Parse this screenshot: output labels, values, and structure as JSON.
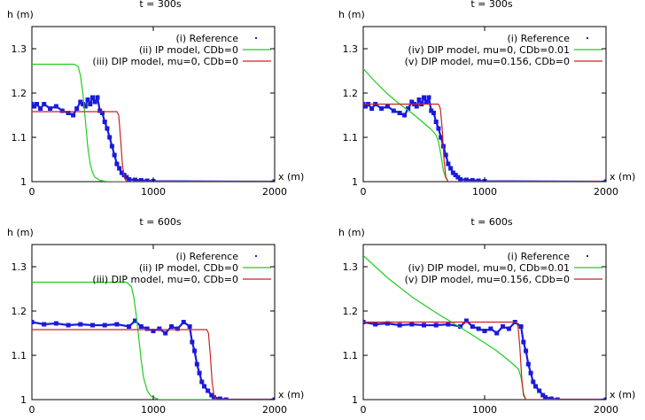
{
  "chart_data": [
    {
      "type": "line",
      "title": "t = 300s",
      "xlabel": "x (m)",
      "ylabel": "h (m)",
      "xlim": [
        0,
        2000
      ],
      "ylim": [
        1.0,
        1.35
      ],
      "xticks": [
        "0",
        "1000",
        "2000"
      ],
      "yticks": [
        "1",
        "1.1",
        "1.2",
        "1.3"
      ],
      "legend_position": "top-right",
      "colors": {
        "reference": "#1a1adc",
        "green": "#22cc22",
        "red": "#cc2222"
      },
      "series": [
        {
          "name": "(i) Reference",
          "style": "points",
          "x": [
            0,
            20,
            40,
            70,
            100,
            150,
            200,
            250,
            300,
            340,
            370,
            400,
            420,
            440,
            460,
            480,
            500,
            520,
            540,
            560,
            580,
            600,
            620,
            640,
            660,
            680,
            700,
            720,
            740,
            760,
            780,
            800,
            850,
            900,
            950,
            1000,
            2000
          ],
          "y": [
            1.175,
            1.17,
            1.175,
            1.165,
            1.175,
            1.165,
            1.17,
            1.16,
            1.155,
            1.15,
            1.165,
            1.18,
            1.175,
            1.17,
            1.185,
            1.175,
            1.19,
            1.18,
            1.19,
            1.16,
            1.155,
            1.135,
            1.12,
            1.1,
            1.08,
            1.06,
            1.04,
            1.03,
            1.02,
            1.015,
            1.01,
            1.005,
            1.004,
            1.003,
            1.002,
            1.001,
            1.0
          ]
        },
        {
          "name": "(ii) IP model, CDb=0",
          "x": [
            0,
            350,
            380,
            400,
            420,
            440,
            460,
            480,
            500,
            520,
            560,
            620,
            2000
          ],
          "y": [
            1.265,
            1.265,
            1.26,
            1.24,
            1.2,
            1.14,
            1.08,
            1.04,
            1.02,
            1.01,
            1.003,
            1.0,
            1.0
          ]
        },
        {
          "name": "(iii) DIP model, mu=0, CDb=0",
          "x": [
            0,
            700,
            715,
            730,
            745,
            760,
            780,
            2000
          ],
          "y": [
            1.158,
            1.158,
            1.15,
            1.1,
            1.04,
            1.01,
            1.0,
            1.0
          ]
        }
      ]
    },
    {
      "type": "line",
      "title": "t = 300s",
      "xlabel": "x (m)",
      "ylabel": "h (m)",
      "xlim": [
        0,
        2000
      ],
      "ylim": [
        1.0,
        1.35
      ],
      "xticks": [
        "0",
        "1000",
        "2000"
      ],
      "yticks": [
        "1",
        "1.1",
        "1.2",
        "1.3"
      ],
      "legend_position": "top-right",
      "colors": {
        "reference": "#1a1adc",
        "green": "#22cc22",
        "red": "#cc2222"
      },
      "series": [
        {
          "name": "(i) Reference",
          "style": "points",
          "x": [
            0,
            20,
            40,
            70,
            100,
            150,
            200,
            250,
            300,
            340,
            370,
            400,
            420,
            440,
            460,
            480,
            500,
            520,
            540,
            560,
            580,
            600,
            620,
            640,
            660,
            680,
            700,
            720,
            740,
            760,
            780,
            800,
            850,
            900,
            950,
            1000,
            2000
          ],
          "y": [
            1.175,
            1.17,
            1.175,
            1.165,
            1.175,
            1.165,
            1.17,
            1.16,
            1.155,
            1.15,
            1.165,
            1.18,
            1.175,
            1.17,
            1.185,
            1.175,
            1.19,
            1.18,
            1.19,
            1.16,
            1.155,
            1.135,
            1.12,
            1.1,
            1.08,
            1.06,
            1.04,
            1.03,
            1.02,
            1.015,
            1.01,
            1.005,
            1.004,
            1.003,
            1.002,
            1.001,
            1.0
          ]
        },
        {
          "name": "(iv) DIP model, mu=0, CDb=0.01",
          "x": [
            0,
            100,
            200,
            300,
            400,
            500,
            560,
            600,
            620,
            640,
            660,
            680,
            700,
            2000
          ],
          "y": [
            1.255,
            1.225,
            1.198,
            1.175,
            1.155,
            1.132,
            1.118,
            1.105,
            1.09,
            1.06,
            1.025,
            1.008,
            1.0,
            1.0
          ]
        },
        {
          "name": "(v) DIP model, mu=0.156, CDb=0",
          "x": [
            0,
            620,
            635,
            650,
            665,
            680,
            700,
            2000
          ],
          "y": [
            1.175,
            1.175,
            1.165,
            1.12,
            1.05,
            1.01,
            1.0,
            1.0
          ]
        }
      ]
    },
    {
      "type": "line",
      "title": "t = 600s",
      "xlabel": "x (m)",
      "ylabel": "h (m)",
      "xlim": [
        0,
        2000
      ],
      "ylim": [
        1.0,
        1.35
      ],
      "xticks": [
        "0",
        "1000",
        "2000"
      ],
      "yticks": [
        "1",
        "1.1",
        "1.2",
        "1.3"
      ],
      "legend_position": "top-right",
      "colors": {
        "reference": "#1a1adc",
        "green": "#22cc22",
        "red": "#cc2222"
      },
      "series": [
        {
          "name": "(i) Reference",
          "style": "points",
          "x": [
            0,
            100,
            200,
            300,
            400,
            500,
            600,
            700,
            800,
            850,
            900,
            950,
            1000,
            1050,
            1100,
            1150,
            1200,
            1250,
            1300,
            1320,
            1340,
            1360,
            1380,
            1400,
            1420,
            1450,
            1480,
            1500,
            1550,
            1600,
            2000
          ],
          "y": [
            1.175,
            1.17,
            1.172,
            1.168,
            1.17,
            1.168,
            1.168,
            1.17,
            1.165,
            1.178,
            1.165,
            1.16,
            1.155,
            1.16,
            1.15,
            1.165,
            1.16,
            1.175,
            1.165,
            1.13,
            1.11,
            1.08,
            1.06,
            1.04,
            1.03,
            1.02,
            1.01,
            1.005,
            1.002,
            1.0,
            1.0
          ]
        },
        {
          "name": "(ii) IP model, CDb=0",
          "x": [
            0,
            780,
            820,
            840,
            860,
            880,
            900,
            920,
            950,
            980,
            1050,
            2000
          ],
          "y": [
            1.265,
            1.265,
            1.255,
            1.23,
            1.19,
            1.14,
            1.09,
            1.05,
            1.02,
            1.008,
            1.0,
            1.0
          ]
        },
        {
          "name": "(iii) DIP model, mu=0, CDb=0",
          "x": [
            0,
            1440,
            1455,
            1470,
            1485,
            1500,
            1520,
            2000
          ],
          "y": [
            1.158,
            1.158,
            1.15,
            1.1,
            1.04,
            1.01,
            1.0,
            1.0
          ]
        }
      ]
    },
    {
      "type": "line",
      "title": "t = 600s",
      "xlabel": "x (m)",
      "ylabel": "h (m)",
      "xlim": [
        0,
        2000
      ],
      "ylim": [
        1.0,
        1.35
      ],
      "xticks": [
        "0",
        "1000",
        "2000"
      ],
      "yticks": [
        "1",
        "1.1",
        "1.2",
        "1.3"
      ],
      "legend_position": "top-right",
      "colors": {
        "reference": "#1a1adc",
        "green": "#22cc22",
        "red": "#cc2222"
      },
      "series": [
        {
          "name": "(i) Reference",
          "style": "points",
          "x": [
            0,
            100,
            200,
            300,
            400,
            500,
            600,
            700,
            800,
            850,
            900,
            950,
            1000,
            1050,
            1100,
            1150,
            1200,
            1250,
            1300,
            1320,
            1340,
            1360,
            1380,
            1400,
            1420,
            1450,
            1480,
            1500,
            1550,
            1600,
            2000
          ],
          "y": [
            1.175,
            1.17,
            1.172,
            1.168,
            1.17,
            1.168,
            1.168,
            1.17,
            1.165,
            1.178,
            1.165,
            1.16,
            1.155,
            1.16,
            1.15,
            1.165,
            1.16,
            1.175,
            1.165,
            1.13,
            1.11,
            1.08,
            1.06,
            1.04,
            1.03,
            1.02,
            1.01,
            1.005,
            1.002,
            1.0,
            1.0
          ]
        },
        {
          "name": "(iv) DIP model, mu=0, CDb=0.01",
          "x": [
            0,
            200,
            400,
            600,
            800,
            1000,
            1100,
            1200,
            1250,
            1280,
            1300,
            1320,
            1340,
            2000
          ],
          "y": [
            1.325,
            1.275,
            1.232,
            1.196,
            1.163,
            1.128,
            1.11,
            1.088,
            1.076,
            1.068,
            1.05,
            1.015,
            1.0,
            1.0
          ]
        },
        {
          "name": "(v) DIP model, mu=0.156, CDb=0",
          "x": [
            0,
            1260,
            1275,
            1290,
            1305,
            1320,
            1340,
            2000
          ],
          "y": [
            1.175,
            1.175,
            1.165,
            1.12,
            1.05,
            1.01,
            1.0,
            1.0
          ]
        }
      ]
    }
  ]
}
